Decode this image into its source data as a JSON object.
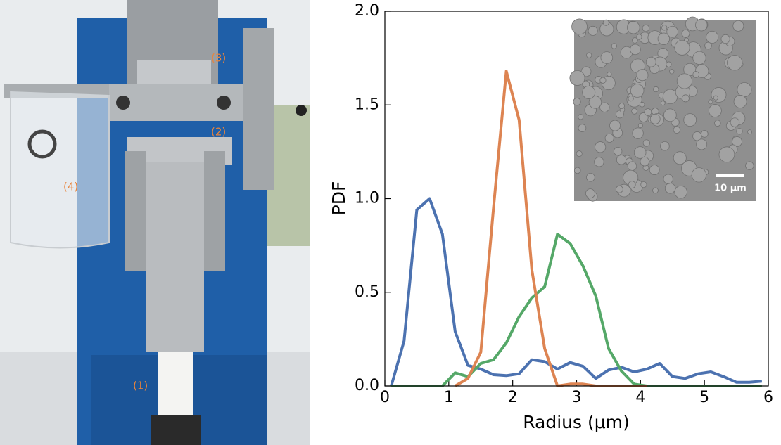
{
  "photo_labels": [
    "(1)",
    "(2)",
    "(3)",
    "(4)"
  ],
  "inset": {
    "scale_label": "10 μm"
  },
  "chart_data": {
    "type": "line",
    "xlabel": "Radius (μm)",
    "ylabel": "PDF",
    "x": [
      0.1,
      0.3,
      0.5,
      0.7,
      0.9,
      1.1,
      1.3,
      1.5,
      1.7,
      1.9,
      2.1,
      2.3,
      2.5,
      2.7,
      2.9,
      3.1,
      3.3,
      3.5,
      3.7,
      3.9,
      4.1,
      4.3,
      4.5,
      4.7,
      4.9,
      5.1,
      5.3,
      5.5,
      5.7,
      5.9
    ],
    "series": [
      {
        "color": "#4c72b0",
        "values": [
          0,
          0.24,
          0.94,
          1.0,
          0.81,
          0.29,
          0.11,
          0.09,
          0.06,
          0.055,
          0.065,
          0.14,
          0.13,
          0.09,
          0.125,
          0.105,
          0.04,
          0.085,
          0.1,
          0.075,
          0.09,
          0.12,
          0.05,
          0.04,
          0.065,
          0.075,
          0.05,
          0.02,
          0.02,
          0.025
        ]
      },
      {
        "color": "#55a868",
        "values": [
          0,
          0,
          0,
          0,
          0,
          0.07,
          0.05,
          0.12,
          0.14,
          0.23,
          0.37,
          0.47,
          0.53,
          0.81,
          0.76,
          0.64,
          0.48,
          0.2,
          0.08,
          0.01,
          0,
          0,
          0,
          0,
          0,
          0,
          0,
          0,
          0,
          0
        ]
      },
      {
        "color": "#dd8452",
        "values": [
          null,
          null,
          null,
          null,
          null,
          0,
          0.04,
          0.18,
          0.95,
          1.68,
          1.42,
          0.62,
          0.2,
          0,
          0.01,
          0.01,
          0,
          0,
          0,
          0,
          0,
          null,
          null,
          null,
          null,
          null,
          null,
          null,
          null,
          null
        ]
      }
    ],
    "xlim": [
      0,
      6
    ],
    "ylim": [
      0,
      2
    ],
    "xticks": [
      0,
      1,
      2,
      3,
      4,
      5,
      6
    ],
    "yticks": [
      {
        "value": 0,
        "label": "0.0"
      },
      0.5,
      {
        "value": 1,
        "label": "1.0"
      },
      1.5,
      {
        "value": 2,
        "label": "2.0"
      }
    ]
  }
}
